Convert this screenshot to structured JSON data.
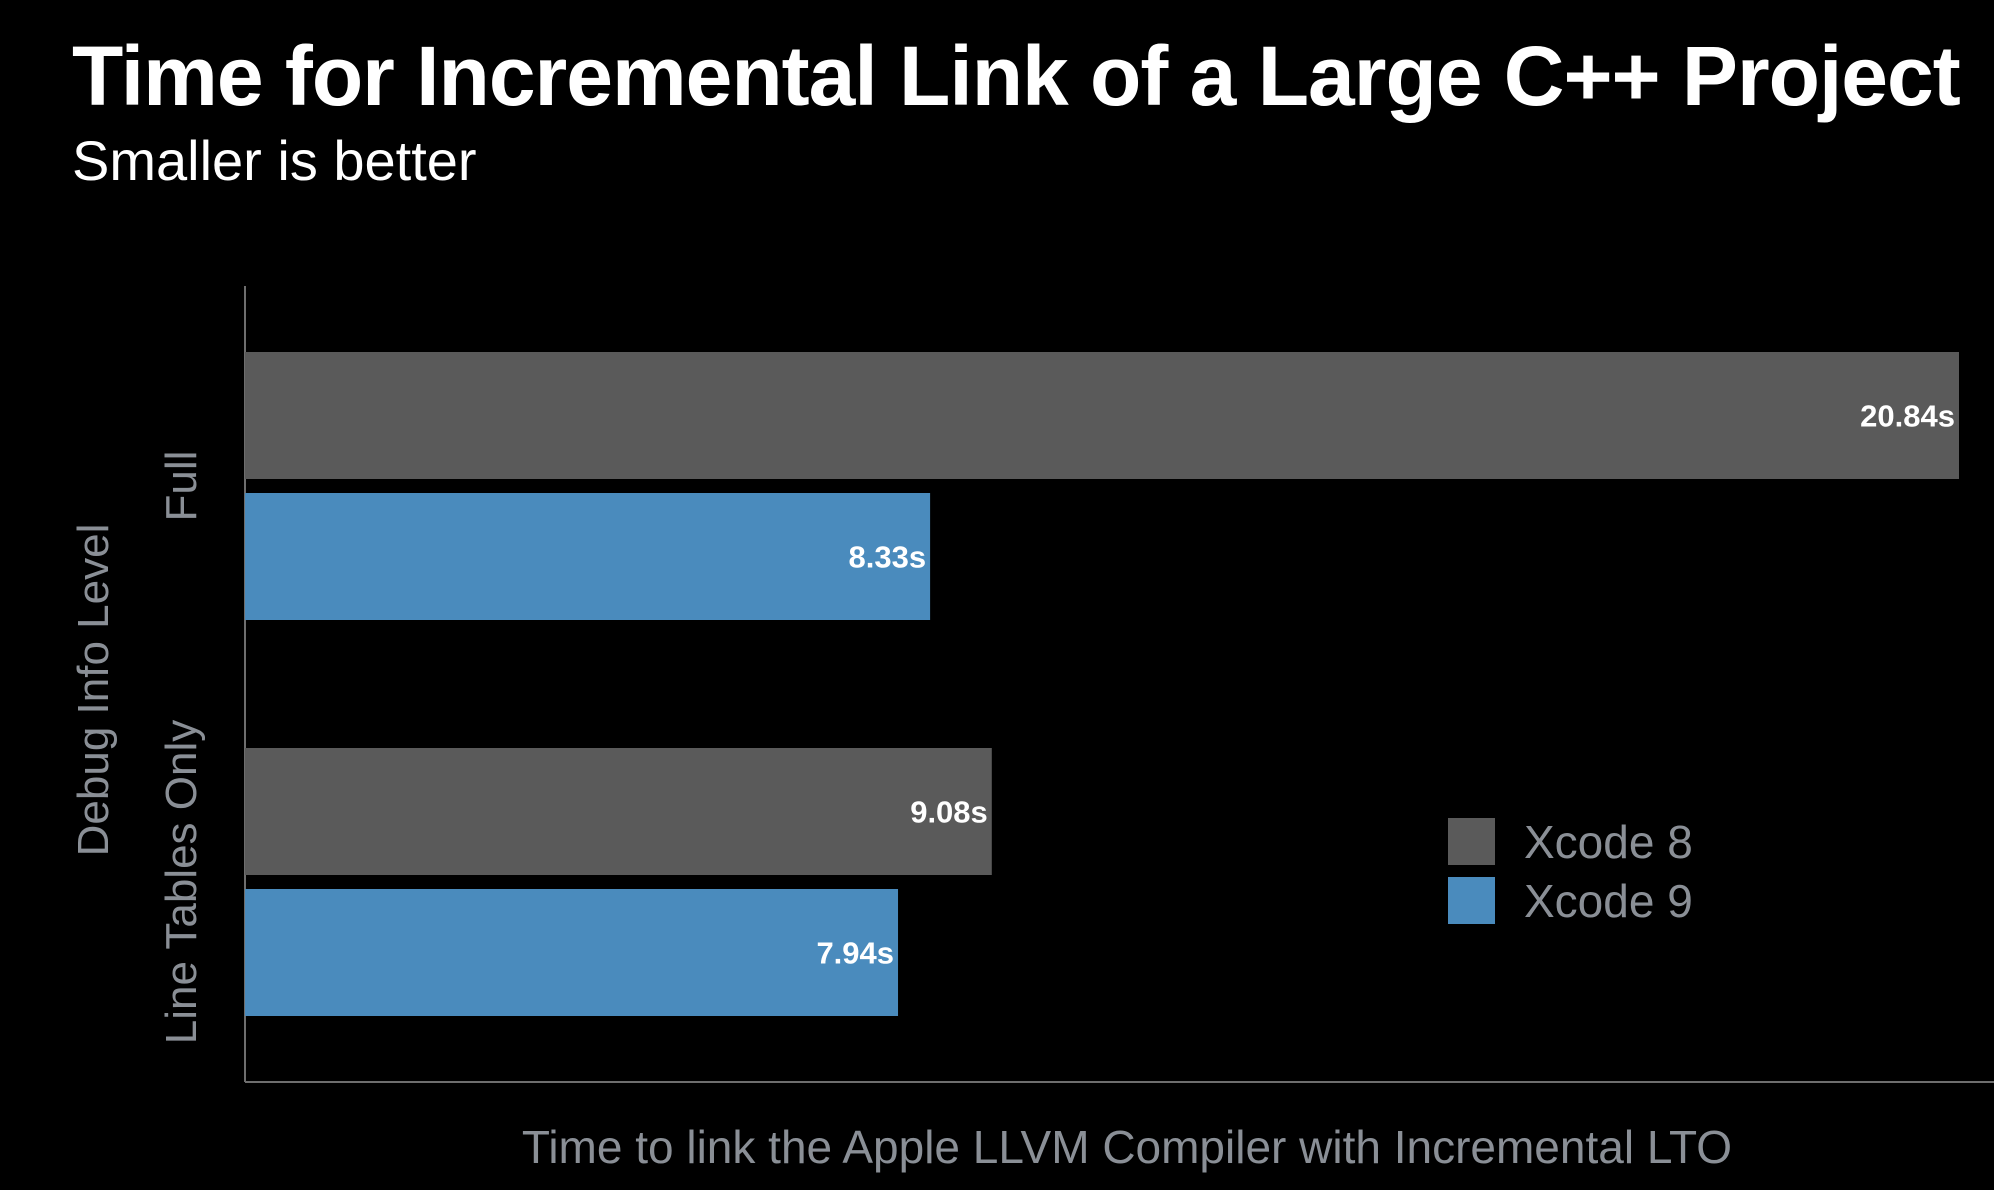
{
  "chart_data": {
    "type": "bar",
    "orientation": "horizontal",
    "title": "Time for Incremental Link of a Large C++ Project",
    "subtitle": "Smaller is better",
    "xlabel": "Time to link the Apple LLVM Compiler with Incremental LTO",
    "ylabel": "Debug Info Level",
    "categories": [
      "Full",
      "Line Tables Only"
    ],
    "series": [
      {
        "name": "Xcode 8",
        "color": "#5a5a5a",
        "values": [
          20.84,
          9.08
        ],
        "labels": [
          "20.84s",
          "9.08s"
        ]
      },
      {
        "name": "Xcode 9",
        "color": "#4a8bbd",
        "values": [
          8.33,
          7.94
        ],
        "labels": [
          "8.33s",
          "7.94s"
        ]
      }
    ],
    "xlim": [
      0,
      20.84
    ],
    "legend": "right",
    "grid": false
  }
}
